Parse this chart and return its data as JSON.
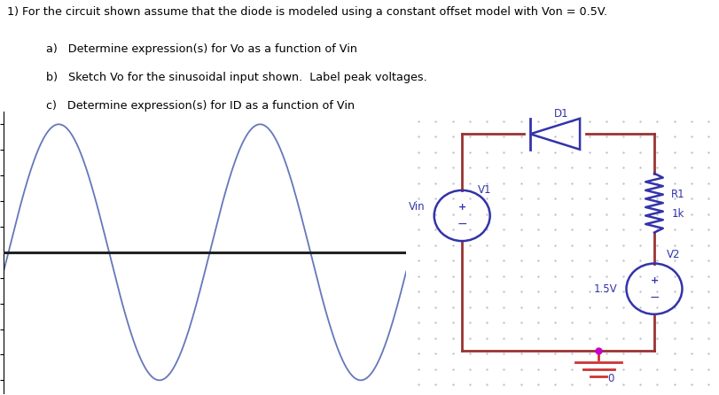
{
  "title_text": "1) For the circuit shown assume that the diode is modeled using a constant offset model with Von = 0.5V.",
  "item_a": "a)   Determine expression(s) for Vo as a function of Vin",
  "item_b": "b)   Sketch Vo for the sinusoidal input shown.  Label peak voltages.",
  "item_c": "c)   Determine expression(s) for ID as a function of Vin",
  "sine_amplitude": 5,
  "sine_color": "#6677bb",
  "hline_color": "#222222",
  "ylim": [
    -5.5,
    5.5
  ],
  "yticks": [
    -5,
    -4,
    -3,
    -2,
    -1,
    1,
    2,
    3,
    4,
    5
  ],
  "bg_color": "#ffffff",
  "circuit_bg": "#eeeef5",
  "circuit_dot_color": "#bbbbcc",
  "wire_color": "#993333",
  "component_color": "#3333aa",
  "label_color": "#3333aa",
  "ground_color": "#cc3333",
  "node_color": "#cc00cc"
}
